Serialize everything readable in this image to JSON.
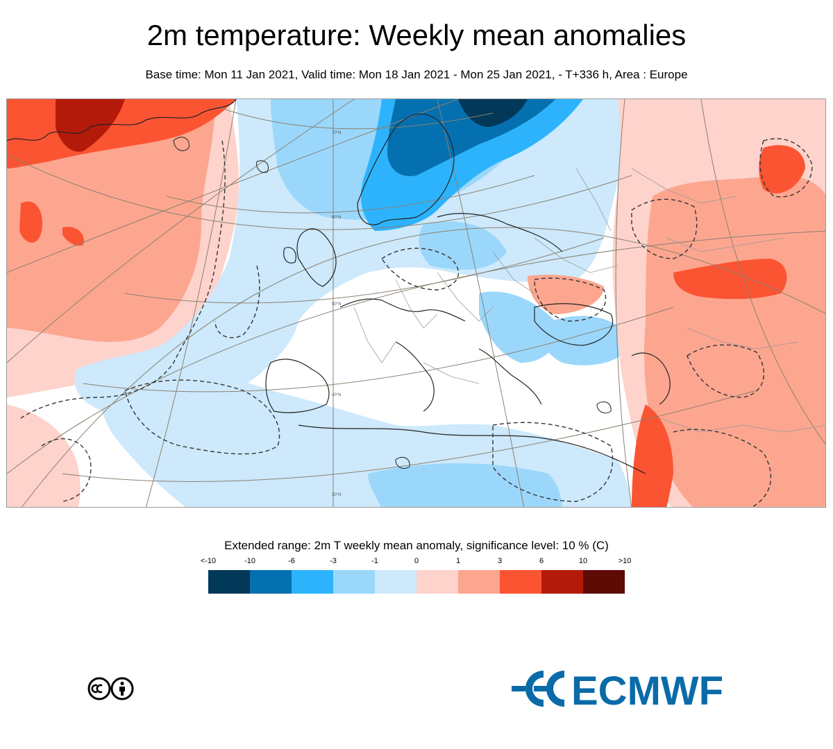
{
  "header": {
    "title": "2m temperature: Weekly mean anomalies",
    "subtitle": "Base time: Mon 11 Jan 2021, Valid time: Mon 18 Jan 2021 - Mon 25 Jan 2021, - T+336 h, Area : Europe"
  },
  "map": {
    "area": "Europe",
    "latitude_labels": [
      "70°N",
      "60°N",
      "50°N",
      "40°N",
      "30°N"
    ]
  },
  "legend": {
    "title": "Extended range: 2m T weekly mean anomaly, significance level: 10 % (C)",
    "ticks": [
      "<-10",
      "-10",
      "-6",
      "-3",
      "-1",
      "0",
      "1",
      "3",
      "6",
      "10",
      ">10"
    ],
    "colors": [
      "#023858",
      "#0570b0",
      "#2db3fc",
      "#9bd7fb",
      "#cde9fb",
      "#fdd3cc",
      "#fca690",
      "#fb5432",
      "#b41a0a",
      "#5e0a05"
    ]
  },
  "footer": {
    "license_icon": "cc-by-icon",
    "logo_text": "ECMWF"
  }
}
